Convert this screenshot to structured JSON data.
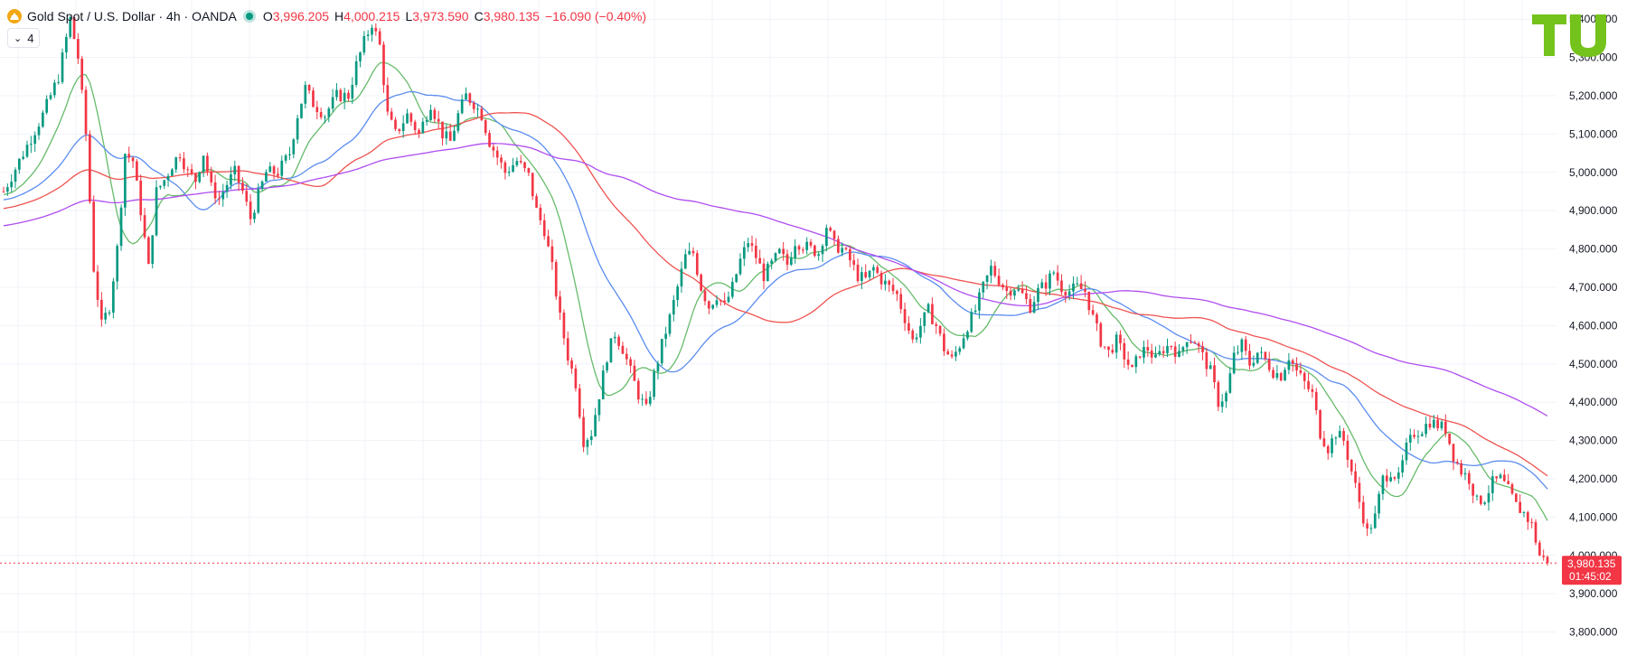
{
  "header": {
    "symbol_title": "Gold Spot / U.S. Dollar · 4h · OANDA",
    "open_label": "O",
    "open": "3,996.205",
    "high_label": "H",
    "high": "4,000.215",
    "low_label": "L",
    "low": "3,973.590",
    "close_label": "C",
    "close": "3,980.135",
    "change": "−16.090 (−0.40%)",
    "indicator_count": "4"
  },
  "icons": {
    "symbol": "gold-coin-icon",
    "live": "market-open-dot-icon",
    "toggle": "chevron-down-icon",
    "logo": "tu-logo-icon"
  },
  "colors": {
    "up": "#089981",
    "down": "#f23645",
    "ma_fast": "#66bb6a",
    "ma_mid": "#5b8def",
    "ma_slow": "#ef5350",
    "ma_long": "#b04df0",
    "logo": "#74c21c"
  },
  "price_tag": {
    "price": "3,980.135",
    "countdown": "01:45:02"
  },
  "chart_data": {
    "type": "candlestick",
    "y_axis": {
      "min": 3740,
      "max": 5450,
      "ticks": [
        3800,
        3900,
        4000,
        4100,
        4200,
        4300,
        4400,
        4500,
        4600,
        4700,
        4800,
        4900,
        5000,
        5100,
        5200,
        5300,
        5400
      ],
      "tick_labels": [
        "3,800.000",
        "3,900.000",
        "4,000.000",
        "4,100.000",
        "4,200.000",
        "4,300.000",
        "4,400.000",
        "4,500.000",
        "4,600.000",
        "4,700.000",
        "4,800.000",
        "4,900.000",
        "5,000.000",
        "5,100.000",
        "5,200.000",
        "5,300.000",
        "5,400.000"
      ]
    },
    "grid": true,
    "last_price": 3980.135,
    "price_path": [
      [
        0,
        4950
      ],
      [
        5,
        5050
      ],
      [
        10,
        5150
      ],
      [
        14,
        5250
      ],
      [
        17,
        5400
      ],
      [
        19,
        5300
      ],
      [
        21,
        5100
      ],
      [
        23,
        4750
      ],
      [
        25,
        4600
      ],
      [
        27,
        4650
      ],
      [
        29,
        4800
      ],
      [
        31,
        5050
      ],
      [
        33,
        5030
      ],
      [
        35,
        4900
      ],
      [
        37,
        4750
      ],
      [
        39,
        4950
      ],
      [
        41,
        4980
      ],
      [
        43,
        5020
      ],
      [
        45,
        5050
      ],
      [
        47,
        5000
      ],
      [
        49,
        4980
      ],
      [
        51,
        5050
      ],
      [
        53,
        4960
      ],
      [
        55,
        4930
      ],
      [
        57,
        4970
      ],
      [
        59,
        5000
      ],
      [
        61,
        4950
      ],
      [
        63,
        4880
      ],
      [
        65,
        4940
      ],
      [
        67,
        5000
      ],
      [
        70,
        5000
      ],
      [
        73,
        5050
      ],
      [
        75,
        5150
      ],
      [
        77,
        5220
      ],
      [
        79,
        5180
      ],
      [
        82,
        5150
      ],
      [
        85,
        5200
      ],
      [
        88,
        5200
      ],
      [
        90,
        5280
      ],
      [
        92,
        5340
      ],
      [
        94,
        5390
      ],
      [
        96,
        5330
      ],
      [
        98,
        5150
      ],
      [
        100,
        5100
      ],
      [
        103,
        5150
      ],
      [
        106,
        5100
      ],
      [
        109,
        5180
      ],
      [
        112,
        5100
      ],
      [
        114,
        5080
      ],
      [
        116,
        5150
      ],
      [
        118,
        5200
      ],
      [
        120,
        5180
      ],
      [
        122,
        5150
      ],
      [
        124,
        5080
      ],
      [
        126,
        5040
      ],
      [
        128,
        5000
      ],
      [
        131,
        5030
      ],
      [
        134,
        4990
      ],
      [
        136,
        4900
      ],
      [
        138,
        4850
      ],
      [
        140,
        4750
      ],
      [
        142,
        4620
      ],
      [
        144,
        4520
      ],
      [
        146,
        4450
      ],
      [
        148,
        4300
      ],
      [
        150,
        4320
      ],
      [
        152,
        4420
      ],
      [
        154,
        4520
      ],
      [
        156,
        4580
      ],
      [
        158,
        4540
      ],
      [
        160,
        4480
      ],
      [
        162,
        4420
      ],
      [
        164,
        4380
      ],
      [
        166,
        4470
      ],
      [
        168,
        4550
      ],
      [
        170,
        4620
      ],
      [
        172,
        4700
      ],
      [
        174,
        4780
      ],
      [
        176,
        4790
      ],
      [
        178,
        4700
      ],
      [
        180,
        4650
      ],
      [
        182,
        4680
      ],
      [
        184,
        4650
      ],
      [
        186,
        4700
      ],
      [
        188,
        4770
      ],
      [
        190,
        4820
      ],
      [
        192,
        4780
      ],
      [
        194,
        4730
      ],
      [
        196,
        4760
      ],
      [
        198,
        4790
      ],
      [
        200,
        4760
      ],
      [
        202,
        4820
      ],
      [
        204,
        4810
      ],
      [
        206,
        4800
      ],
      [
        208,
        4790
      ],
      [
        210,
        4860
      ],
      [
        212,
        4810
      ],
      [
        214,
        4800
      ],
      [
        216,
        4770
      ],
      [
        218,
        4730
      ],
      [
        220,
        4720
      ],
      [
        222,
        4750
      ],
      [
        224,
        4720
      ],
      [
        226,
        4700
      ],
      [
        228,
        4680
      ],
      [
        230,
        4620
      ],
      [
        232,
        4560
      ],
      [
        234,
        4600
      ],
      [
        236,
        4640
      ],
      [
        238,
        4600
      ],
      [
        240,
        4540
      ],
      [
        242,
        4510
      ],
      [
        244,
        4550
      ],
      [
        246,
        4600
      ],
      [
        248,
        4640
      ],
      [
        250,
        4700
      ],
      [
        252,
        4750
      ],
      [
        254,
        4720
      ],
      [
        256,
        4690
      ],
      [
        258,
        4700
      ],
      [
        260,
        4680
      ],
      [
        262,
        4650
      ],
      [
        264,
        4690
      ],
      [
        266,
        4710
      ],
      [
        268,
        4740
      ],
      [
        270,
        4700
      ],
      [
        272,
        4690
      ],
      [
        274,
        4700
      ],
      [
        276,
        4690
      ],
      [
        278,
        4620
      ],
      [
        280,
        4560
      ],
      [
        282,
        4530
      ],
      [
        284,
        4560
      ],
      [
        286,
        4520
      ],
      [
        288,
        4480
      ],
      [
        290,
        4530
      ],
      [
        292,
        4540
      ],
      [
        294,
        4510
      ],
      [
        296,
        4540
      ],
      [
        298,
        4550
      ],
      [
        300,
        4520
      ],
      [
        302,
        4570
      ],
      [
        304,
        4560
      ],
      [
        306,
        4520
      ],
      [
        308,
        4480
      ],
      [
        310,
        4400
      ],
      [
        312,
        4420
      ],
      [
        314,
        4520
      ],
      [
        316,
        4550
      ],
      [
        318,
        4500
      ],
      [
        320,
        4530
      ],
      [
        322,
        4510
      ],
      [
        324,
        4480
      ],
      [
        326,
        4470
      ],
      [
        328,
        4520
      ],
      [
        330,
        4480
      ],
      [
        332,
        4450
      ],
      [
        334,
        4420
      ],
      [
        336,
        4320
      ],
      [
        338,
        4280
      ],
      [
        340,
        4320
      ],
      [
        342,
        4300
      ],
      [
        344,
        4220
      ],
      [
        346,
        4140
      ],
      [
        348,
        4060
      ],
      [
        350,
        4100
      ],
      [
        352,
        4200
      ],
      [
        354,
        4220
      ],
      [
        356,
        4200
      ],
      [
        358,
        4280
      ],
      [
        360,
        4320
      ],
      [
        362,
        4330
      ],
      [
        364,
        4350
      ],
      [
        366,
        4340
      ],
      [
        368,
        4330
      ],
      [
        370,
        4260
      ],
      [
        372,
        4220
      ],
      [
        374,
        4200
      ],
      [
        376,
        4140
      ],
      [
        378,
        4150
      ],
      [
        380,
        4190
      ],
      [
        382,
        4200
      ],
      [
        384,
        4170
      ],
      [
        386,
        4130
      ],
      [
        388,
        4110
      ],
      [
        390,
        4080
      ],
      [
        392,
        4000
      ],
      [
        394,
        3980
      ]
    ],
    "moving_averages": [
      {
        "id": "ma-fast",
        "color": "#66bb6a",
        "period": 12
      },
      {
        "id": "ma-mid",
        "color": "#5b8def",
        "period": 30
      },
      {
        "id": "ma-slow",
        "color": "#ef5350",
        "period": 60
      },
      {
        "id": "ma-long",
        "color": "#b04df0",
        "period": 120
      }
    ]
  }
}
